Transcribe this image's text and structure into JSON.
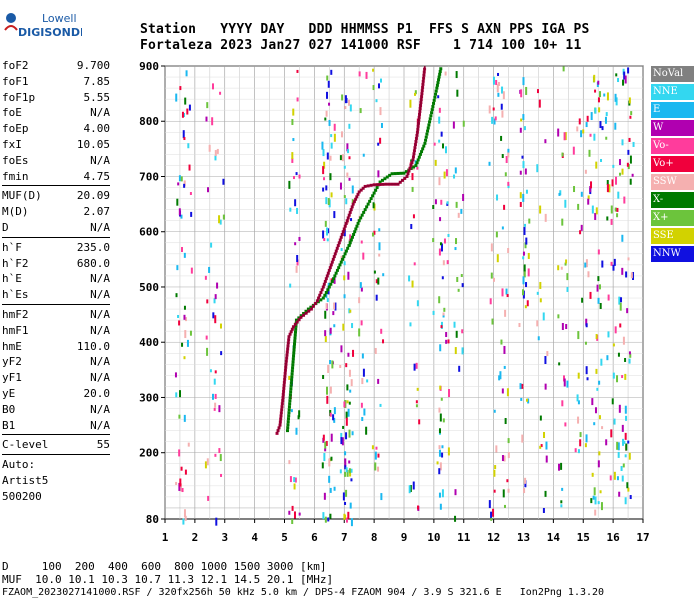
{
  "logo": {
    "line1": "Lowell",
    "line2": "DIGISONDE"
  },
  "header": {
    "labels": "Station   YYYY DAY   DDD HHMMSS P1  FFS S AXN PPS IGA PS",
    "values": "Fortaleza 2023 Jan27 027 141000 RSF    1 714 100 10+ 11"
  },
  "params": [
    {
      "label": "foF2",
      "value": "9.700"
    },
    {
      "label": "foF1",
      "value": "7.85"
    },
    {
      "label": "foF1p",
      "value": "5.55"
    },
    {
      "label": "foE",
      "value": "N/A"
    },
    {
      "label": "foEp",
      "value": "4.00"
    },
    {
      "label": "fxI",
      "value": "10.05"
    },
    {
      "label": "foEs",
      "value": "N/A"
    },
    {
      "label": "fmin",
      "value": "4.75"
    },
    {
      "label": "MUF(D)",
      "value": "20.09",
      "sep": true
    },
    {
      "label": "M(D)",
      "value": "2.07"
    },
    {
      "label": "D",
      "value": "N/A"
    },
    {
      "label": "h`F",
      "value": "235.0",
      "sep": true
    },
    {
      "label": "h`F2",
      "value": "680.0"
    },
    {
      "label": "h`E",
      "value": "N/A"
    },
    {
      "label": "h`Es",
      "value": "N/A"
    },
    {
      "label": "hmF2",
      "value": "N/A",
      "sep": true
    },
    {
      "label": "hmF1",
      "value": "N/A"
    },
    {
      "label": "hmE",
      "value": "110.0"
    },
    {
      "label": "yF2",
      "value": "N/A"
    },
    {
      "label": "yF1",
      "value": "N/A"
    },
    {
      "label": "yE",
      "value": "20.0"
    },
    {
      "label": "B0",
      "value": "N/A"
    },
    {
      "label": "B1",
      "value": "N/A"
    },
    {
      "label": "C-level",
      "value": "55",
      "sep": true
    }
  ],
  "auto": {
    "line1": "Auto:",
    "line2": "Artist5",
    "line3": "500200"
  },
  "legend": [
    {
      "name": "NoVal",
      "color": "#808080"
    },
    {
      "name": "NNE",
      "color": "#33d7f0"
    },
    {
      "name": "E",
      "color": "#1ab8f0"
    },
    {
      "name": "W",
      "color": "#b000b0"
    },
    {
      "name": "Vo-",
      "color": "#ff3c9c"
    },
    {
      "name": "Vo+",
      "color": "#f0003c"
    },
    {
      "name": "SSW",
      "color": "#f5b0b0"
    },
    {
      "name": "X-",
      "color": "#007a00"
    },
    {
      "name": "X+",
      "color": "#6cc43c"
    },
    {
      "name": "SSE",
      "color": "#d2d200"
    },
    {
      "name": "NNW",
      "color": "#1010e0"
    }
  ],
  "footer": {
    "line1": "D     100  200  400  600  800 1000 1500 3000 [km]",
    "line2": "MUF  10.0 10.1 10.3 10.7 11.3 12.1 14.5 20.1 [MHz]",
    "line3": "FZAOM_2023027141000.RSF / 320fx256h 50 kHz 5.0 km / DPS-4 FZAOM 904 / 3.9 S 321.6 E   Ion2Png 1.3.20"
  },
  "chart_data": {
    "type": "scatter",
    "xlim": [
      1,
      17
    ],
    "ylim": [
      80,
      900
    ],
    "xticks": [
      1,
      2,
      3,
      4,
      5,
      6,
      7,
      8,
      9,
      10,
      11,
      12,
      13,
      14,
      15,
      16,
      17
    ],
    "yticks": [
      80,
      200,
      300,
      400,
      500,
      600,
      700,
      800,
      900
    ],
    "trace_o": [
      [
        4.75,
        235
      ],
      [
        4.85,
        250
      ],
      [
        4.95,
        300
      ],
      [
        5.05,
        360
      ],
      [
        5.15,
        410
      ],
      [
        5.3,
        428
      ],
      [
        5.55,
        445
      ],
      [
        5.9,
        460
      ],
      [
        6.1,
        475
      ],
      [
        6.3,
        500
      ],
      [
        6.5,
        530
      ],
      [
        6.7,
        560
      ],
      [
        6.9,
        590
      ],
      [
        7.1,
        620
      ],
      [
        7.3,
        650
      ],
      [
        7.5,
        672
      ],
      [
        7.7,
        682
      ],
      [
        8.0,
        685
      ],
      [
        8.4,
        686
      ],
      [
        8.8,
        686
      ],
      [
        9.1,
        700
      ],
      [
        9.3,
        730
      ],
      [
        9.45,
        780
      ],
      [
        9.6,
        850
      ],
      [
        9.7,
        900
      ]
    ],
    "trace_x": [
      [
        5.1,
        240
      ],
      [
        5.4,
        440
      ],
      [
        5.8,
        460
      ],
      [
        6.3,
        480
      ],
      [
        6.6,
        510
      ],
      [
        6.9,
        545
      ],
      [
        7.2,
        580
      ],
      [
        7.5,
        620
      ],
      [
        7.8,
        650
      ],
      [
        8.2,
        690
      ],
      [
        8.6,
        705
      ],
      [
        9.0,
        706
      ],
      [
        9.4,
        720
      ],
      [
        9.7,
        760
      ],
      [
        9.9,
        810
      ],
      [
        10.1,
        860
      ],
      [
        10.25,
        900
      ]
    ]
  }
}
